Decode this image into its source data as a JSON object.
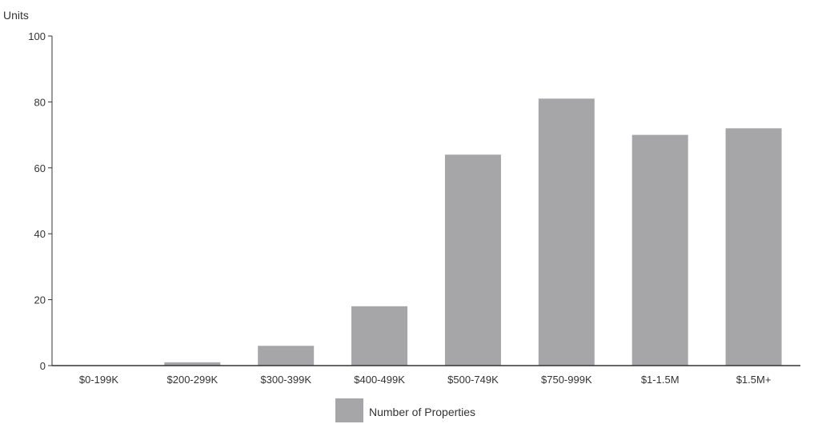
{
  "chart_data": {
    "type": "bar",
    "ylabel": "Units",
    "xlabel": "",
    "ylim": [
      0,
      100
    ],
    "yticks": [
      0,
      20,
      40,
      60,
      80,
      100
    ],
    "grid": false,
    "legend_position": "bottom-center",
    "categories": [
      "$0-199K",
      "$200-299K",
      "$300-399K",
      "$400-499K",
      "$500-749K",
      "$750-999K",
      "$1-1.5M",
      "$1.5M+"
    ],
    "series": [
      {
        "name": "Number of Properties",
        "color": "#a6a6a9",
        "values": [
          0,
          1,
          6,
          18,
          64,
          81,
          70,
          72
        ]
      }
    ]
  }
}
